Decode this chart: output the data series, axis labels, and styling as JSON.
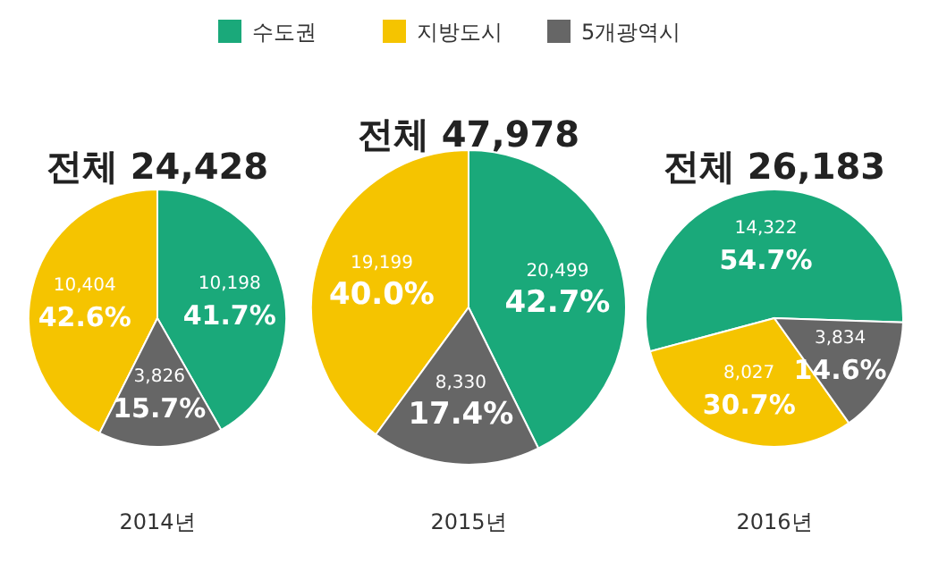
{
  "chart_data": [
    {
      "type": "pie",
      "title": "전체 24,428",
      "xlabel": "2014년",
      "legend": "top",
      "categories": [
        "수도권",
        "지방도시",
        "5개광역시"
      ],
      "values": [
        10198,
        10404,
        3826
      ],
      "colors": [
        "#1aa97a",
        "#f5c400",
        "#666666"
      ],
      "value_labels": [
        "10,198\n41.7%",
        "10,404\n42.6%",
        "3,826\n15.7%"
      ]
    },
    {
      "type": "pie",
      "title": "전체 47,978",
      "xlabel": "2015년",
      "categories": [
        null,
        null,
        null
      ],
      "values": [
        20499,
        19199,
        8330
      ],
      "colors": [
        "#1aa97a",
        "#f5c400",
        "#666666"
      ],
      "value_labels": [
        "20,499\n42.7%",
        "19,199\n40.0%",
        "8,330\n17.4%"
      ]
    },
    {
      "type": "pie",
      "title": "전체 26,183",
      "xlabel": "2016년",
      "categories": [
        null,
        null,
        null
      ],
      "values": [
        14322,
        8027,
        3834
      ],
      "colors": [
        "#1aa97a",
        "#f5c400",
        "#666666"
      ],
      "value_labels": [
        "14,322\n54.7%",
        "8,027\n30.7%",
        "3,834\n14.6%"
      ]
    }
  ]
}
